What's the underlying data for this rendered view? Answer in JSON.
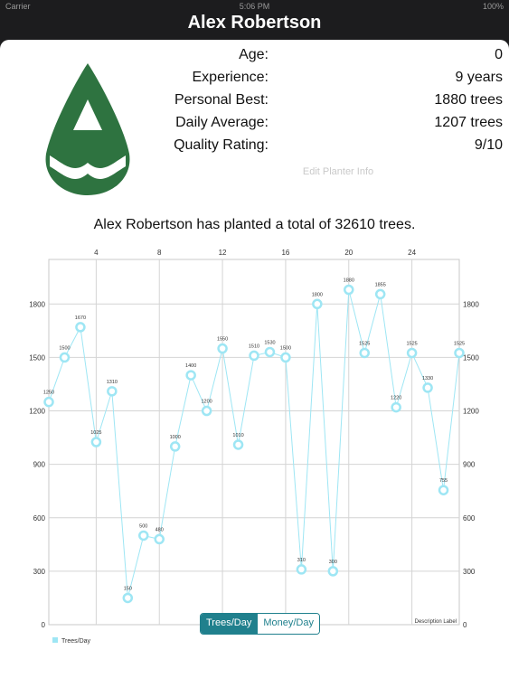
{
  "status": {
    "carrier": "Carrier",
    "time": "5:06 PM",
    "battery": "100%"
  },
  "header": {
    "title": "Alex Robertson"
  },
  "profile": {
    "rows": [
      {
        "label": "Age:",
        "value": "0"
      },
      {
        "label": "Experience:",
        "value": "9 years"
      },
      {
        "label": "Personal Best:",
        "value": "1880 trees"
      },
      {
        "label": "Daily Average:",
        "value": "1207 trees"
      },
      {
        "label": "Quality Rating:",
        "value": "9/10"
      }
    ],
    "edit_label": "Edit Planter Info",
    "logo_color": "#2e7340"
  },
  "summary_text": "Alex Robertson has planted a total of 32610 trees.",
  "chart_data": {
    "type": "line",
    "x": [
      1,
      2,
      3,
      4,
      5,
      6,
      7,
      8,
      9,
      10,
      11,
      12,
      13,
      14,
      15,
      16,
      17,
      18,
      19,
      20,
      21,
      22,
      23,
      24,
      25,
      26,
      27
    ],
    "series": [
      {
        "name": "Trees/Day",
        "values": [
          1250,
          1500,
          1670,
          1025,
          1310,
          150,
          500,
          480,
          1000,
          1400,
          1200,
          1550,
          1010,
          1510,
          1530,
          1500,
          310,
          1800,
          300,
          1880,
          1525,
          1855,
          1220,
          1525,
          1330,
          755,
          1525
        ]
      }
    ],
    "x_ticks": [
      4,
      8,
      12,
      16,
      20,
      24
    ],
    "y_ticks": [
      0,
      300,
      600,
      900,
      1200,
      1500,
      1800
    ],
    "xlim": [
      1,
      27
    ],
    "ylim": [
      0,
      2050
    ],
    "description_label": "Description Label",
    "line_color": "#9ee6f4",
    "grid": true,
    "legend": "bottom-left"
  },
  "segments": {
    "trees": "Trees/Day",
    "money": "Money/Day"
  }
}
